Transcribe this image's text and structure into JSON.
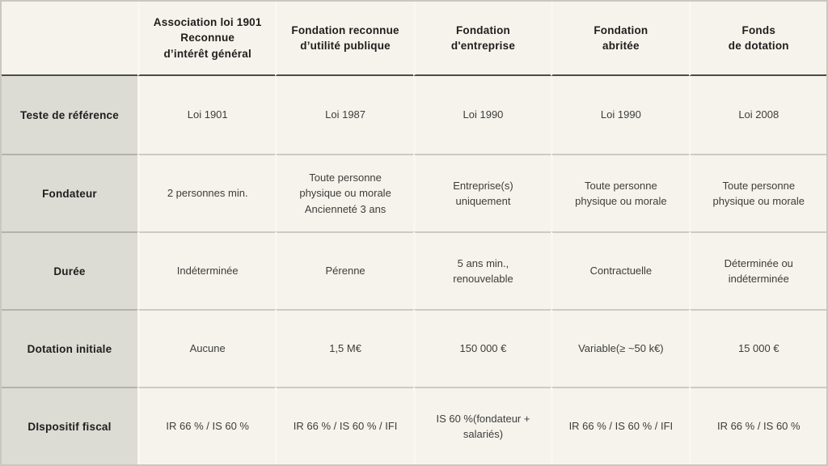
{
  "colors": {
    "content_bg": "#f5f3ec",
    "label_column_bg": "#dcdbd4",
    "header_divider": "#4d4c47",
    "row_divider_label": "#b3b2ab",
    "row_divider_content": "#cbcac3",
    "column_divider": "#f9f7f1",
    "outer_border": "#c8c7c0",
    "header_text": "#1f1e1c",
    "body_text": "#3e3d3a"
  },
  "table": {
    "corner_label": "",
    "column_headers": [
      "Association loi 1901\nReconnue\nd’intérêt général",
      "Fondation reconnue\nd’utilité publique",
      "Fondation\nd'entreprise",
      "Fondation\nabritée",
      "Fonds\nde dotation"
    ],
    "rows": [
      {
        "label": "Teste de référence",
        "cells": [
          "Loi 1901",
          "Loi 1987",
          "Loi 1990",
          "Loi 1990",
          "Loi 2008"
        ]
      },
      {
        "label": "Fondateur",
        "cells": [
          "2 personnes min.",
          "Toute personne\nphysique ou morale\nAncienneté 3 ans",
          "Entreprise(s)\nuniquement",
          "Toute personne\nphysique ou morale",
          "Toute personne\nphysique ou morale"
        ]
      },
      {
        "label": "Durée",
        "cells": [
          "Indéterminée",
          "Pérenne",
          "5 ans min.,\nrenouvelable",
          "Contractuelle",
          "Déterminée ou\nindéterminée"
        ]
      },
      {
        "label": "Dotation initiale",
        "cells": [
          "Aucune",
          "1,5 M€",
          "150 000 €",
          "Variable(≥ ~50 k€)",
          "15 000 €"
        ]
      },
      {
        "label": "DIspositif fiscal",
        "cells": [
          "IR 66 % / IS 60 %",
          "IR 66 % / IS 60 % / IFI",
          "IS 60 %(fondateur +\nsalariés)",
          "IR 66 % / IS 60 % / IFI",
          "IR 66 % / IS 60 %"
        ]
      }
    ]
  },
  "chart_data": {
    "type": "table",
    "title": "",
    "columns": [
      "",
      "Association loi 1901 Reconnue d’intérêt général",
      "Fondation reconnue d’utilité publique",
      "Fondation d'entreprise",
      "Fondation abritée",
      "Fonds de dotation"
    ],
    "rows": [
      [
        "Teste de référence",
        "Loi 1901",
        "Loi 1987",
        "Loi 1990",
        "Loi 1990",
        "Loi 2008"
      ],
      [
        "Fondateur",
        "2 personnes min.",
        "Toute personne physique ou morale Ancienneté 3 ans",
        "Entreprise(s) uniquement",
        "Toute personne physique ou morale",
        "Toute personne physique ou morale"
      ],
      [
        "Durée",
        "Indéterminée",
        "Pérenne",
        "5 ans min., renouvelable",
        "Contractuelle",
        "Déterminée ou indéterminée"
      ],
      [
        "Dotation initiale",
        "Aucune",
        "1,5 M€",
        "150 000 €",
        "Variable(≥ ~50 k€)",
        "15 000 €"
      ],
      [
        "DIspositif fiscal",
        "IR 66 % / IS 60 %",
        "IR 66 % / IS 60 % / IFI",
        "IS 60 %(fondateur + salariés)",
        "IR 66 % / IS 60 % / IFI",
        "IR 66 % / IS 60 %"
      ]
    ],
    "layout": {
      "header_row": true,
      "label_column": true,
      "grid": "horizontal-rules-with-light-column-gaps"
    }
  }
}
